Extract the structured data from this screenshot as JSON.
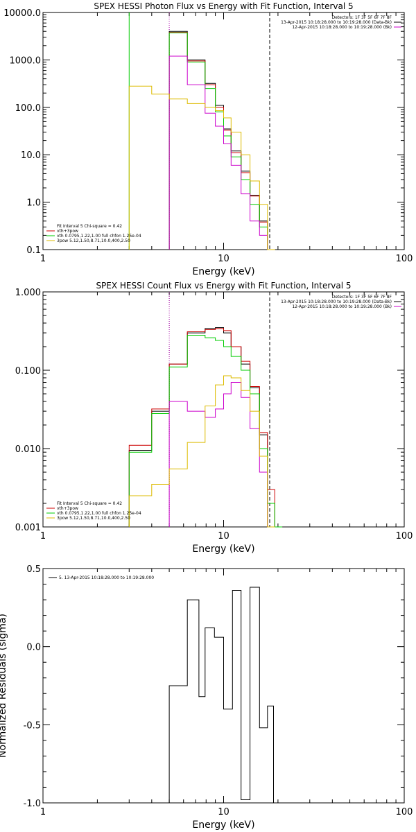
{
  "chart_data": [
    {
      "type": "line",
      "title": "SPEX HESSI Photon Flux vs Energy with Fit Function, Interval 5",
      "xlabel": "Energy (keV)",
      "ylabel": "",
      "xscale": "log",
      "yscale": "log",
      "xlim": [
        1,
        100
      ],
      "ylim": [
        0.1,
        10000
      ],
      "xticks": [
        "1",
        "10",
        "100"
      ],
      "yticks": [
        "0.1",
        "1.0",
        "10.0",
        "100.0",
        "1000.0",
        "10000.0"
      ],
      "vlines": [
        {
          "x": 3.0,
          "color": "#00cc00",
          "style": "solid"
        },
        {
          "x": 5.0,
          "color": "#00cc00",
          "style": "dotted"
        },
        {
          "x": 5.0,
          "color": "#cc00cc",
          "style": "dotted"
        },
        {
          "x": 18.0,
          "color": "#000000",
          "style": "dashed"
        }
      ],
      "legend_topright": [
        "Detectors: 1F 3F 5F 6F 7F 8F",
        "13-Apr-2015 10:18:28.000 to 10:19:28.000 (Data-Bk)",
        "12-Apr-2015 10:18:28.000 to 10:19:28.000 (Bk)"
      ],
      "legend_bottomleft": [
        "Fit Interval 5   Chi-square = 0.42",
        "vth+3pow",
        "vth 0.0795,1.22,1.00  full chfon 1.25e-04",
        "3pow 5.12,1.50,8.71,10.0,400,2.50"
      ],
      "series": [
        {
          "color": "#000000",
          "bins": [
            5,
            6.3,
            7.9,
            9,
            10,
            11,
            12.5,
            14,
            15.8,
            17.5
          ],
          "values": [
            4000,
            1000,
            320,
            110,
            35,
            12,
            4.5,
            1.4,
            0.4,
            0.1
          ]
        },
        {
          "color": "#cc0000",
          "bins": [
            5,
            6.3,
            7.9,
            9,
            10,
            11,
            12.5,
            14,
            15.8,
            17.5
          ],
          "values": [
            3800,
            950,
            300,
            100,
            33,
            11,
            4.2,
            1.35,
            0.38,
            0.1
          ]
        },
        {
          "color": "#00cc00",
          "bins": [
            5,
            6.3,
            7.9,
            9,
            10,
            11,
            12.5,
            14,
            15.8,
            17.5
          ],
          "values": [
            3700,
            900,
            250,
            80,
            25,
            9,
            3,
            0.9,
            0.3,
            0.1
          ]
        },
        {
          "color": "#cc00cc",
          "bins": [
            5,
            6.3,
            7.9,
            9,
            10,
            11,
            12.5,
            14,
            15.8,
            17.5
          ],
          "values": [
            1200,
            300,
            75,
            40,
            17,
            6,
            1.5,
            0.4,
            0.2,
            0.1
          ]
        },
        {
          "color": "#ddbb00",
          "bins": [
            3,
            4,
            5,
            6.3,
            7.9,
            9,
            10,
            11,
            12.5,
            14,
            15.8,
            17.5
          ],
          "values": [
            280,
            190,
            150,
            120,
            100,
            85,
            60,
            30,
            10,
            2.8,
            0.9,
            0.1
          ]
        }
      ]
    },
    {
      "type": "line",
      "title": "SPEX HESSI Count Flux vs Energy with Fit Function, Interval 5",
      "xlabel": "Energy (keV)",
      "ylabel": "",
      "xscale": "log",
      "yscale": "log",
      "xlim": [
        1,
        100
      ],
      "ylim": [
        0.001,
        1
      ],
      "xticks": [
        "1",
        "10",
        "100"
      ],
      "yticks": [
        "0.001",
        "0.010",
        "0.100",
        "1.000"
      ],
      "vlines": [
        {
          "x": 5.0,
          "color": "#000000",
          "style": "dotted"
        },
        {
          "x": 5.0,
          "color": "#00cc00",
          "style": "dotted"
        },
        {
          "x": 5.0,
          "color": "#cc00cc",
          "style": "dotted"
        },
        {
          "x": 18.0,
          "color": "#000000",
          "style": "dashed"
        }
      ],
      "legend_topright": [
        "Detectors: 1F 3F 5F 6F 7F 8F",
        "13-Apr-2015 10:18:28.000 to 10:19:28.000 (Data-Bk)",
        "12-Apr-2015 10:18:28.000 to 10:19:28.000 (Bk)"
      ],
      "legend_bottomleft": [
        "Fit Interval 5   Chi-square = 0.42",
        "vth+3pow",
        "vth 0.0795,1.22,1.00  full chfon 1.25e-04",
        "3pow 5.12,1.50,8.71,10.0,400,2.50"
      ],
      "series": [
        {
          "color": "#000000",
          "bins": [
            3,
            4,
            5,
            6.3,
            7.9,
            9,
            10,
            11,
            12.5,
            14,
            15.8,
            17.5
          ],
          "values": [
            0.0095,
            0.03,
            0.12,
            0.3,
            0.34,
            0.35,
            0.3,
            0.2,
            0.12,
            0.06,
            0.015,
            0.001
          ]
        },
        {
          "color": "#cc0000",
          "bins": [
            3,
            4,
            5,
            6.3,
            7.9,
            9,
            10,
            11,
            12.5,
            14,
            15.8,
            17.5,
            19.2
          ],
          "values": [
            0.011,
            0.032,
            0.12,
            0.31,
            0.33,
            0.34,
            0.32,
            0.2,
            0.13,
            0.062,
            0.016,
            0.003,
            0.001
          ]
        },
        {
          "color": "#00cc00",
          "bins": [
            3,
            4,
            5,
            6.3,
            7.9,
            9,
            10,
            11,
            12.5,
            14,
            15.8,
            17.5,
            19.2
          ],
          "values": [
            0.009,
            0.028,
            0.11,
            0.28,
            0.26,
            0.24,
            0.2,
            0.15,
            0.1,
            0.05,
            0.01,
            0.002,
            0.001
          ]
        },
        {
          "color": "#cc00cc",
          "bins": [
            5,
            6.3,
            7.9,
            9,
            10,
            11,
            12.5,
            14,
            15.8,
            17.5
          ],
          "values": [
            0.04,
            0.03,
            0.025,
            0.032,
            0.05,
            0.07,
            0.045,
            0.018,
            0.005,
            0.001
          ]
        },
        {
          "color": "#ddbb00",
          "bins": [
            3,
            4,
            5,
            6.3,
            7.9,
            9,
            10,
            11,
            12.5,
            14,
            15.8,
            17.5
          ],
          "values": [
            0.0025,
            0.0035,
            0.0055,
            0.012,
            0.035,
            0.065,
            0.085,
            0.08,
            0.055,
            0.03,
            0.008,
            0.001
          ]
        }
      ]
    },
    {
      "type": "line",
      "title": "",
      "xlabel": "Energy (keV)",
      "ylabel": "Normalized Residuals (sigma)",
      "xscale": "log",
      "yscale": "linear",
      "xlim": [
        1,
        100
      ],
      "ylim": [
        -1.0,
        0.5
      ],
      "xticks": [
        "1",
        "10",
        "100"
      ],
      "yticks": [
        "-1.0",
        "-0.5",
        "0.0",
        "0.5"
      ],
      "legend": [
        "5. 13-Apr-2015 10:18:28.000 to 10:19:28.000"
      ],
      "series": [
        {
          "color": "#000000",
          "bins": [
            5,
            6.3,
            7.3,
            7.9,
            8.9,
            10,
            11.2,
            12.5,
            14,
            15.8,
            17.5,
            18.9
          ],
          "values": [
            -0.25,
            0.3,
            -0.32,
            0.12,
            0.06,
            -0.4,
            0.36,
            -0.98,
            0.38,
            -0.52,
            -0.38
          ]
        }
      ]
    }
  ]
}
